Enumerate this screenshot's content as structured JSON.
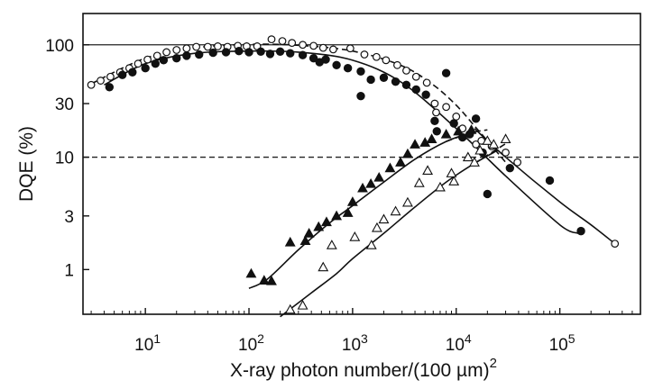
{
  "chart_data": {
    "type": "scatter",
    "xlabel": "X-ray photon number/(100 µm)",
    "xlabel_superscript": "2",
    "ylabel": "DQE (%)",
    "x_scale": "log",
    "y_scale": "log",
    "xlim": [
      2.5,
      600000
    ],
    "ylim": [
      0.4,
      190
    ],
    "x_ticks": [
      {
        "value": 10,
        "base": "10",
        "exp": "1"
      },
      {
        "value": 100,
        "base": "10",
        "exp": "2"
      },
      {
        "value": 1000,
        "base": "10",
        "exp": "3"
      },
      {
        "value": 10000,
        "base": "10",
        "exp": "4"
      },
      {
        "value": 100000,
        "base": "10",
        "exp": "5"
      }
    ],
    "y_ticks": [
      {
        "value": 1,
        "label": "1"
      },
      {
        "value": 3,
        "label": "3"
      },
      {
        "value": 10,
        "label": "10"
      },
      {
        "value": 30,
        "label": "30"
      },
      {
        "value": 100,
        "label": "100"
      }
    ],
    "reference_lines": [
      {
        "y": 100,
        "style": "solid"
      },
      {
        "y": 10,
        "style": "dashed"
      }
    ],
    "series": [
      {
        "marker": "circle-open",
        "points": [
          [
            3,
            44
          ],
          [
            3.7,
            48
          ],
          [
            4.6,
            52
          ],
          [
            5.7,
            57
          ],
          [
            7,
            62
          ],
          [
            8.5,
            68
          ],
          [
            10.5,
            74
          ],
          [
            13,
            80
          ],
          [
            16,
            86
          ],
          [
            20,
            90
          ],
          [
            25,
            93
          ],
          [
            31,
            96
          ],
          [
            40,
            96
          ],
          [
            50,
            97
          ],
          [
            62,
            96
          ],
          [
            78,
            98
          ],
          [
            95,
            97
          ],
          [
            120,
            97
          ],
          [
            165,
            112
          ],
          [
            210,
            108
          ],
          [
            260,
            104
          ],
          [
            330,
            100
          ],
          [
            420,
            98
          ],
          [
            520,
            94
          ],
          [
            650,
            91
          ],
          [
            950,
            93
          ],
          [
            1300,
            82
          ],
          [
            1700,
            78
          ],
          [
            2100,
            73
          ],
          [
            2700,
            66
          ],
          [
            3300,
            59
          ],
          [
            4100,
            52
          ],
          [
            5200,
            46
          ],
          [
            6200,
            30
          ],
          [
            6400,
            25
          ],
          [
            8000,
            28
          ],
          [
            10000,
            23
          ],
          [
            11500,
            18
          ],
          [
            13500,
            16
          ],
          [
            15500,
            13
          ],
          [
            17500,
            14
          ],
          [
            22000,
            12.5
          ],
          [
            30000,
            11
          ],
          [
            39000,
            9
          ],
          [
            340000,
            1.7
          ]
        ]
      },
      {
        "marker": "circle-filled",
        "points": [
          [
            4.5,
            42
          ],
          [
            6,
            54
          ],
          [
            7.5,
            57
          ],
          [
            10,
            62
          ],
          [
            12.5,
            68
          ],
          [
            15,
            73
          ],
          [
            20,
            76
          ],
          [
            25,
            80
          ],
          [
            33,
            82
          ],
          [
            45,
            85
          ],
          [
            60,
            86
          ],
          [
            80,
            88
          ],
          [
            100,
            86
          ],
          [
            130,
            87
          ],
          [
            160,
            83
          ],
          [
            200,
            87
          ],
          [
            250,
            84
          ],
          [
            330,
            81
          ],
          [
            420,
            76
          ],
          [
            480,
            70
          ],
          [
            550,
            74
          ],
          [
            700,
            66
          ],
          [
            900,
            62
          ],
          [
            1200,
            58
          ],
          [
            1200,
            35
          ],
          [
            1500,
            49
          ],
          [
            2000,
            51
          ],
          [
            2600,
            47
          ],
          [
            3300,
            44
          ],
          [
            4100,
            40
          ],
          [
            5100,
            36
          ],
          [
            6200,
            21
          ],
          [
            6500,
            17
          ],
          [
            8000,
            56
          ],
          [
            9500,
            20
          ],
          [
            11500,
            15
          ],
          [
            13500,
            16
          ],
          [
            15500,
            22
          ],
          [
            18000,
            11
          ],
          [
            20000,
            4.7
          ],
          [
            33000,
            8
          ],
          [
            80000,
            6.2
          ],
          [
            160000,
            2.2
          ]
        ]
      },
      {
        "marker": "triangle-filled",
        "points": [
          [
            105,
            0.92
          ],
          [
            140,
            0.8
          ],
          [
            165,
            0.79
          ],
          [
            250,
            1.75
          ],
          [
            350,
            1.8
          ],
          [
            380,
            2.1
          ],
          [
            470,
            2.4
          ],
          [
            560,
            2.65
          ],
          [
            700,
            3.0
          ],
          [
            900,
            3.2
          ],
          [
            1000,
            4.0
          ],
          [
            1250,
            5.3
          ],
          [
            1500,
            5.8
          ],
          [
            1800,
            6.6
          ],
          [
            2300,
            8.0
          ],
          [
            2900,
            9.0
          ],
          [
            3400,
            10.7
          ],
          [
            4000,
            13.0
          ],
          [
            5000,
            13.5
          ],
          [
            5800,
            14.5
          ],
          [
            8000,
            16.0
          ],
          [
            10500,
            17.0
          ],
          [
            14000,
            17.5
          ]
        ]
      },
      {
        "marker": "triangle-open",
        "points": [
          [
            250,
            0.44
          ],
          [
            330,
            0.48
          ],
          [
            520,
            1.05
          ],
          [
            630,
            1.65
          ],
          [
            1050,
            1.95
          ],
          [
            1520,
            1.65
          ],
          [
            1720,
            2.35
          ],
          [
            2000,
            2.8
          ],
          [
            2600,
            3.3
          ],
          [
            3400,
            3.95
          ],
          [
            4400,
            5.9
          ],
          [
            5300,
            7.6
          ],
          [
            7000,
            5.4
          ],
          [
            9000,
            7.2
          ],
          [
            9500,
            6.1
          ],
          [
            13000,
            10.0
          ],
          [
            15000,
            9.0
          ],
          [
            17000,
            11.5
          ],
          [
            20000,
            14.0
          ],
          [
            23000,
            13.0
          ],
          [
            30000,
            14.5
          ]
        ]
      }
    ],
    "fit_curves": [
      {
        "style": "dashed",
        "for": "circle-open",
        "points": [
          [
            3,
            45
          ],
          [
            10,
            76
          ],
          [
            30,
            94
          ],
          [
            100,
            101
          ],
          [
            300,
            99
          ],
          [
            1000,
            88
          ],
          [
            3000,
            65
          ],
          [
            6000,
            44
          ],
          [
            10000,
            29
          ],
          [
            15000,
            19
          ],
          [
            20000,
            14
          ],
          [
            30000,
            9
          ]
        ]
      },
      {
        "style": "solid",
        "for": "circle-filled",
        "points": [
          [
            4,
            44
          ],
          [
            10,
            68
          ],
          [
            30,
            84
          ],
          [
            100,
            88
          ],
          [
            300,
            86
          ],
          [
            1000,
            73
          ],
          [
            3000,
            46
          ],
          [
            10000,
            18
          ],
          [
            30000,
            6.8
          ],
          [
            100000,
            2.5
          ],
          [
            150000,
            2.1
          ]
        ]
      },
      {
        "style": "solid",
        "for": "circle-open",
        "points": [
          [
            15000,
            18
          ],
          [
            30000,
            10
          ],
          [
            100000,
            4
          ],
          [
            200000,
            2.5
          ],
          [
            340000,
            1.7
          ]
        ]
      },
      {
        "style": "solid",
        "for": "triangle-filled",
        "points": [
          [
            100,
            0.68
          ],
          [
            150,
            0.82
          ],
          [
            300,
            1.5
          ],
          [
            600,
            2.6
          ],
          [
            1000,
            3.7
          ],
          [
            2000,
            6.0
          ],
          [
            4000,
            9.6
          ],
          [
            8000,
            13.8
          ],
          [
            14000,
            16.5
          ]
        ]
      },
      {
        "style": "dashed",
        "for": "triangle-filled",
        "points": [
          [
            8000,
            13.8
          ],
          [
            14000,
            16.5
          ],
          [
            20000,
            17.5
          ]
        ]
      },
      {
        "style": "solid",
        "for": "triangle-open",
        "points": [
          [
            200,
            0.38
          ],
          [
            400,
            0.62
          ],
          [
            700,
            0.92
          ],
          [
            1000,
            1.25
          ],
          [
            2000,
            2.1
          ],
          [
            4000,
            3.6
          ],
          [
            8000,
            6.0
          ],
          [
            15000,
            8.8
          ],
          [
            25000,
            11.5
          ]
        ]
      },
      {
        "style": "dashed",
        "for": "triangle-open",
        "points": [
          [
            15000,
            8.8
          ],
          [
            30000,
            13.2
          ]
        ]
      }
    ]
  }
}
